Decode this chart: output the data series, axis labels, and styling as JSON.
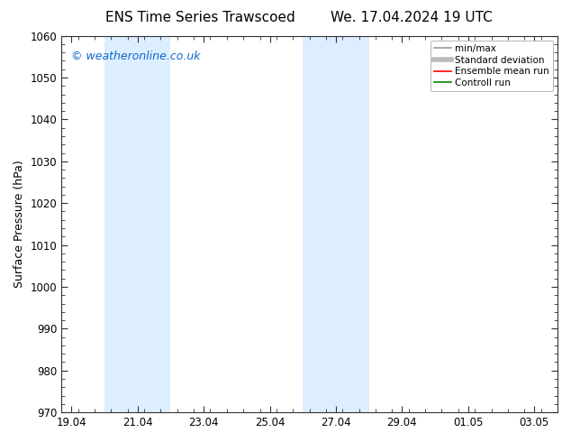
{
  "title_left": "ENS Time Series Trawscoed",
  "title_right": "We. 17.04.2024 19 UTC",
  "ylabel": "Surface Pressure (hPa)",
  "ylim": [
    970,
    1060
  ],
  "yticks": [
    970,
    980,
    990,
    1000,
    1010,
    1020,
    1030,
    1040,
    1050,
    1060
  ],
  "xtick_labels": [
    "19.04",
    "21.04",
    "23.04",
    "25.04",
    "27.04",
    "29.04",
    "01.05",
    "03.05"
  ],
  "xtick_positions": [
    0,
    2,
    4,
    6,
    8,
    10,
    12,
    14
  ],
  "xmin": -0.3,
  "xmax": 14.7,
  "shaded_bands": [
    {
      "xmin": 1.0,
      "xmax": 3.0,
      "color": "#ddeeff"
    },
    {
      "xmin": 7.0,
      "xmax": 9.0,
      "color": "#ddeeff"
    }
  ],
  "watermark_text": "© weatheronline.co.uk",
  "watermark_color": "#1166cc",
  "watermark_fontsize": 9,
  "legend_items": [
    {
      "label": "min/max",
      "color": "#999999",
      "lw": 1.2,
      "style": "solid"
    },
    {
      "label": "Standard deviation",
      "color": "#bbbbbb",
      "lw": 4,
      "style": "solid"
    },
    {
      "label": "Ensemble mean run",
      "color": "#ff0000",
      "lw": 1.2,
      "style": "solid"
    },
    {
      "label": "Controll run",
      "color": "#008800",
      "lw": 1.2,
      "style": "solid"
    }
  ],
  "bg_color": "#ffffff",
  "title_fontsize": 11,
  "axis_label_fontsize": 9,
  "tick_fontsize": 8.5,
  "legend_fontsize": 7.5
}
